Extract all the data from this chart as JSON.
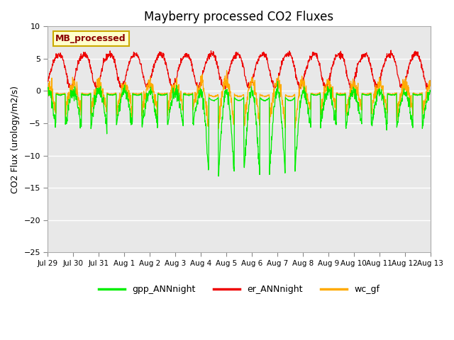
{
  "title": "Mayberry processed CO2 Fluxes",
  "ylabel": "CO2 Flux (urology/m2/s)",
  "ylim": [
    -25,
    10
  ],
  "yticks": [
    -25,
    -20,
    -15,
    -10,
    -5,
    0,
    5,
    10
  ],
  "annotation_label": "MB_processed",
  "legend_labels": [
    "gpp_ANNnight",
    "er_ANNnight",
    "wc_gf"
  ],
  "gpp_color": "#00ee00",
  "er_color": "#ee0000",
  "wc_color": "#ffaa00",
  "n_days": 15,
  "x_tick_positions": [
    0,
    1,
    2,
    3,
    4,
    5,
    6,
    7,
    8,
    9,
    10,
    11,
    12,
    13,
    14,
    15
  ],
  "x_tick_labels": [
    "Jul 29",
    "Jul 30",
    "Jul 31",
    "Aug 1",
    "Aug 2",
    "Aug 3",
    "Aug 4",
    "Aug 5",
    "Aug 6",
    "Aug 7",
    "Aug 8",
    "Aug 9",
    "Aug 10",
    "Aug 11",
    "Aug 12",
    "Aug 13"
  ]
}
